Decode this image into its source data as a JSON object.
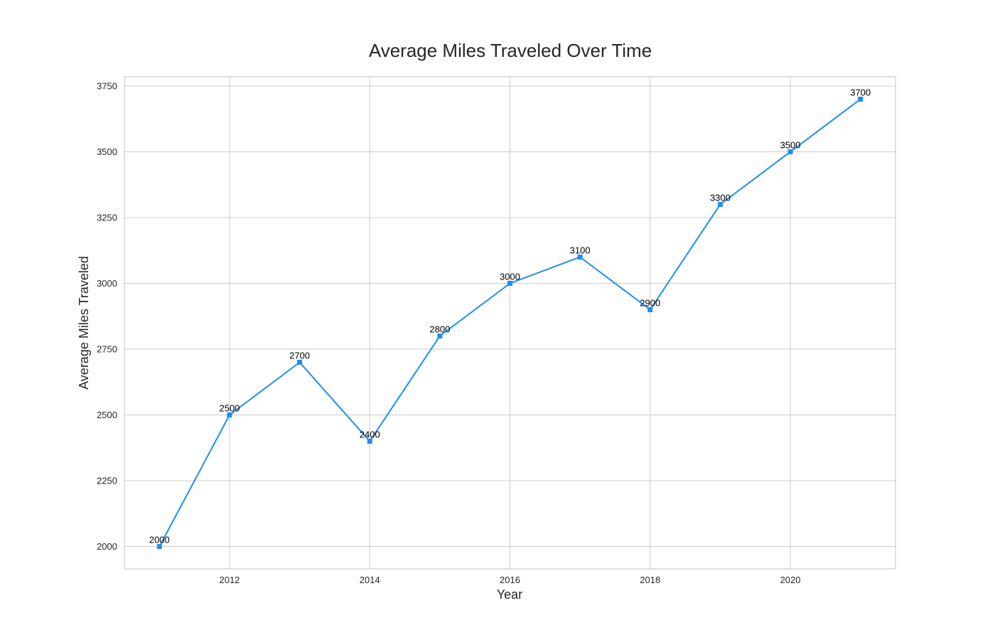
{
  "chart_data": {
    "type": "line",
    "title": "Average Miles Traveled Over Time",
    "xlabel": "Year",
    "ylabel": "Average Miles Traveled",
    "x": [
      2011,
      2012,
      2013,
      2014,
      2015,
      2016,
      2017,
      2018,
      2019,
      2020,
      2021
    ],
    "series": [
      {
        "values": [
          2000,
          2500,
          2700,
          2400,
          2800,
          3000,
          3100,
          2900,
          3300,
          3500,
          3700
        ],
        "color": "#1f8ef1",
        "marker": "square"
      }
    ],
    "xticks": [
      2012,
      2014,
      2016,
      2018,
      2020
    ],
    "yticks": [
      2000,
      2250,
      2500,
      2750,
      3000,
      3250,
      3500,
      3750
    ],
    "xlim": [
      2010.5,
      2021.5
    ],
    "ylim": [
      1915,
      3785
    ],
    "grid": true,
    "legend": false,
    "data_labels": true
  }
}
